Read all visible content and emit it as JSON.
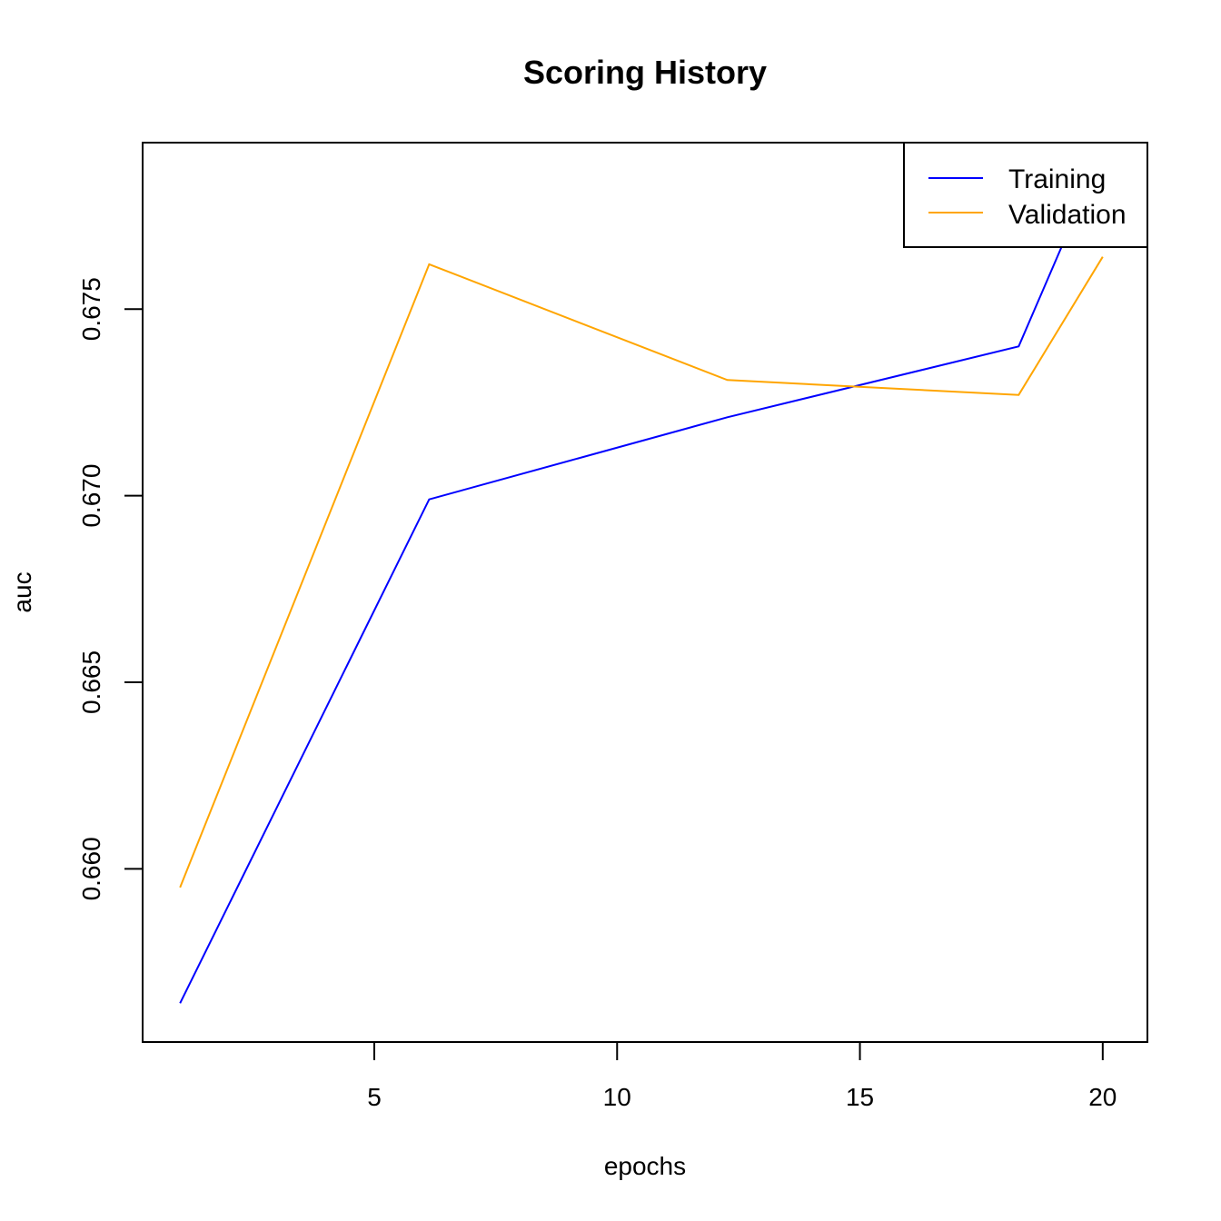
{
  "chart_data": {
    "type": "line",
    "title": "Scoring History",
    "xlabel": "epochs",
    "ylabel": "auc",
    "xlim": [
      0.23,
      20.92
    ],
    "ylim": [
      0.65536,
      0.67946
    ],
    "xticks": [
      5,
      10,
      15,
      20
    ],
    "yticks": [
      0.66,
      0.665,
      0.67,
      0.675
    ],
    "xtick_labels": [
      "5",
      "10",
      "15",
      "20"
    ],
    "ytick_labels": [
      "0.660",
      "0.665",
      "0.670",
      "0.675"
    ],
    "grid": false,
    "legend_position": "top-right",
    "series": [
      {
        "name": "Training",
        "color": "#0000ff",
        "x": [
          1.0,
          6.13,
          12.27,
          18.27,
          19.33,
          20.0
        ],
        "y": [
          0.6564,
          0.6699,
          0.6721,
          0.674,
          0.6772,
          0.6774
        ]
      },
      {
        "name": "Validation",
        "color": "#ffa500",
        "x": [
          1.0,
          6.13,
          12.27,
          18.27,
          20.0
        ],
        "y": [
          0.6595,
          0.6762,
          0.6731,
          0.6727,
          0.6764
        ]
      }
    ]
  }
}
